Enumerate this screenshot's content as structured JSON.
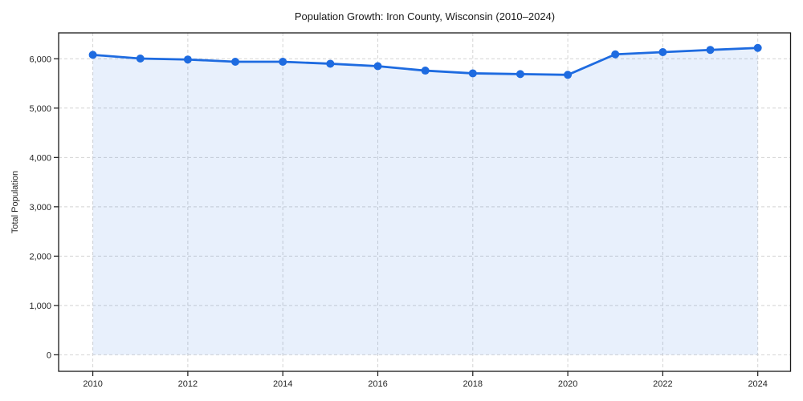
{
  "chart_data": {
    "type": "area",
    "title": "Population Growth: Iron County, Wisconsin (2010–2024)",
    "xlabel": "",
    "ylabel": "Total Population",
    "x": [
      2010,
      2011,
      2012,
      2013,
      2014,
      2015,
      2016,
      2017,
      2018,
      2019,
      2020,
      2021,
      2022,
      2023,
      2024
    ],
    "series": [
      {
        "name": "Total Population",
        "values": [
          6080,
          6005,
          5985,
          5940,
          5940,
          5900,
          5850,
          5760,
          5705,
          5690,
          5675,
          6090,
          6135,
          6180,
          6220
        ]
      }
    ],
    "x_ticks": [
      2010,
      2012,
      2014,
      2016,
      2018,
      2020,
      2022,
      2024
    ],
    "y_ticks": [
      0,
      1000,
      2000,
      3000,
      4000,
      5000,
      6000
    ],
    "y_tick_labels": [
      "0",
      "1,000",
      "2,000",
      "3,000",
      "4,000",
      "5,000",
      "6,000"
    ],
    "xlim": [
      2009.28,
      2024.69
    ],
    "ylim": [
      -335,
      6525
    ],
    "grid": true,
    "legend": false,
    "baseline": 0,
    "marker_radius": 5,
    "line_width": 2.8,
    "colors": {
      "line": "#1e6be0",
      "fill": "rgba(30,107,224,0.10)",
      "grid": "#d4d4d4",
      "axis": "#1a1a1a",
      "text": "#262626",
      "background": "#ffffff"
    }
  }
}
